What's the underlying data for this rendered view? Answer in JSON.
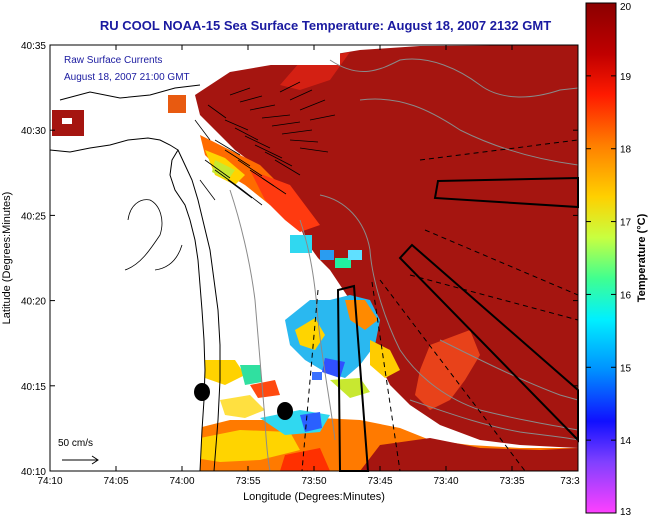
{
  "title": "RU COOL  NOAA-15  Sea Surface Temperature:  August 18, 2007 2132 GMT",
  "overlay": {
    "line1": "Raw Surface Currents",
    "line2": "August 18, 2007 21:00 GMT"
  },
  "scale_label": "50 cm/s",
  "axes": {
    "xlabel": "Longitude (Degrees:Minutes)",
    "ylabel": "Latitude (Degrees:Minutes)",
    "x_ticks": [
      "74:10",
      "74:05",
      "74:00",
      "73:55",
      "73:50",
      "73:45",
      "73:40",
      "73:35",
      "73:3"
    ],
    "y_ticks": [
      "40:35",
      "40:30",
      "40:25",
      "40:20",
      "40:15",
      "40:10"
    ]
  },
  "colorbar": {
    "label": "Temperature (°C)",
    "ticks": [
      "20",
      "19",
      "18",
      "17",
      "16",
      "15",
      "14",
      "13"
    ],
    "min": 13,
    "max": 20
  },
  "colors": {
    "title": "#1a1aa0",
    "warm": "#a0140e",
    "land": "#ffffff"
  }
}
